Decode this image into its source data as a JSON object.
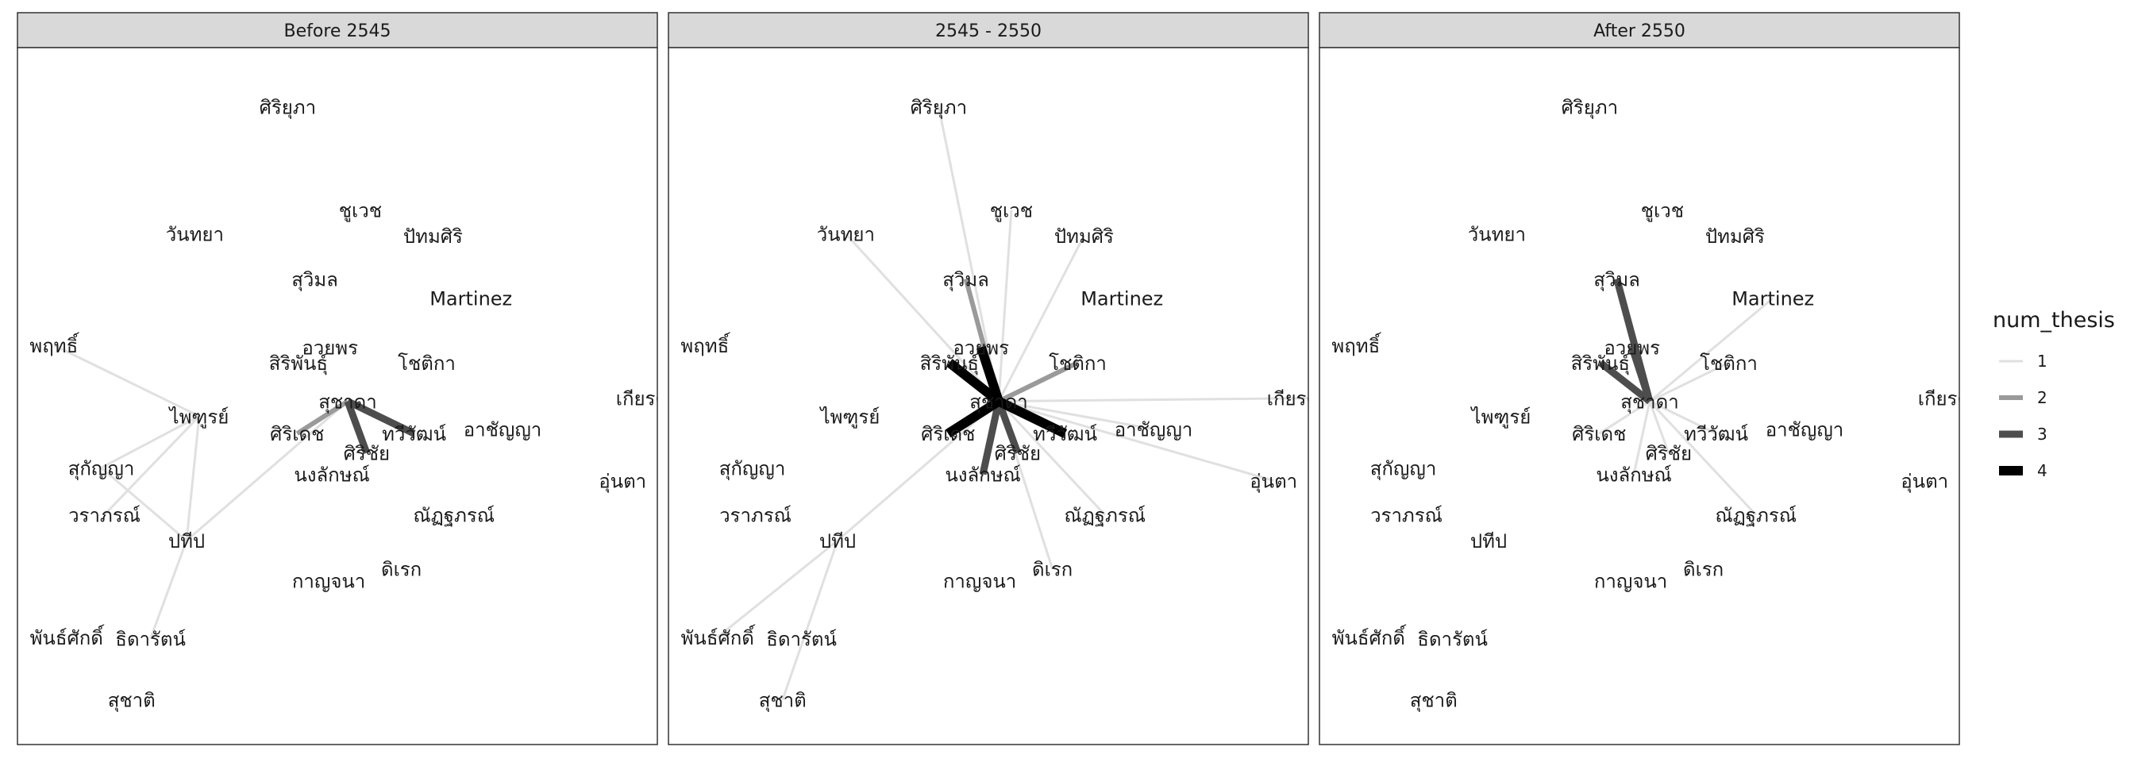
{
  "chart_data": {
    "type": "network",
    "facets": [
      "Before 2545",
      "2545 - 2550",
      "After 2550"
    ],
    "legend": {
      "title": "num_thesis",
      "entries": [
        {
          "value": 1,
          "label": "1",
          "color": "#e0e0e0"
        },
        {
          "value": 2,
          "label": "2",
          "color": "#9a9a9a"
        },
        {
          "value": 3,
          "label": "3",
          "color": "#4d4d4d"
        },
        {
          "value": 4,
          "label": "4",
          "color": "#000000"
        }
      ]
    },
    "nodes": [
      {
        "id": "sriyupa",
        "label": "ศิริยุภา",
        "x": 0.415,
        "y": 0.955
      },
      {
        "id": "chuwet",
        "label": "ชูเวช",
        "x": 0.53,
        "y": 0.795
      },
      {
        "id": "wanthaya",
        "label": "วันทยา",
        "x": 0.268,
        "y": 0.758
      },
      {
        "id": "pathomsiri",
        "label": "ปัทมศิริ",
        "x": 0.645,
        "y": 0.755
      },
      {
        "id": "suwimon",
        "label": "สุวิมล",
        "x": 0.458,
        "y": 0.688
      },
      {
        "id": "martinez",
        "label": "Martinez",
        "x": 0.705,
        "y": 0.658
      },
      {
        "id": "pruetthi",
        "label": "พฤทธิ์",
        "x": 0.045,
        "y": 0.585
      },
      {
        "id": "auayporn",
        "label": "อวยพร",
        "x": 0.482,
        "y": 0.582
      },
      {
        "id": "siriphan",
        "label": "สิริพันธุ์",
        "x": 0.432,
        "y": 0.558
      },
      {
        "id": "chodika",
        "label": "โชติกา",
        "x": 0.635,
        "y": 0.558
      },
      {
        "id": "kiattiwan",
        "label": "เกียรติวรร",
        "x": 1.0,
        "y": 0.503
      },
      {
        "id": "phaiturat",
        "label": "ไพฑูรย์",
        "x": 0.275,
        "y": 0.475
      },
      {
        "id": "suchada",
        "label": "สุชาดา",
        "x": 0.51,
        "y": 0.498
      },
      {
        "id": "siridet",
        "label": "ศิริเดช",
        "x": 0.43,
        "y": 0.448
      },
      {
        "id": "thawiwat",
        "label": "ทวีวัฒน์",
        "x": 0.615,
        "y": 0.448
      },
      {
        "id": "archanya",
        "label": "อาชัญญา",
        "x": 0.755,
        "y": 0.455
      },
      {
        "id": "srichai",
        "label": "ศิริชัย",
        "x": 0.54,
        "y": 0.418
      },
      {
        "id": "sukanya",
        "label": "สุกัญญา",
        "x": 0.12,
        "y": 0.395
      },
      {
        "id": "nonglak",
        "label": "นงลักษณ์",
        "x": 0.485,
        "y": 0.385
      },
      {
        "id": "unta",
        "label": "อุ่นตา",
        "x": 0.945,
        "y": 0.375
      },
      {
        "id": "waraporn",
        "label": "วราภรณ์",
        "x": 0.125,
        "y": 0.322
      },
      {
        "id": "natthaporn",
        "label": "ณัฏฐภรณ์",
        "x": 0.678,
        "y": 0.322
      },
      {
        "id": "pratip",
        "label": "ปทีป",
        "x": 0.255,
        "y": 0.282
      },
      {
        "id": "direk",
        "label": "ดิเรก",
        "x": 0.595,
        "y": 0.238
      },
      {
        "id": "kanchana",
        "label": "กาญจนา",
        "x": 0.48,
        "y": 0.22
      },
      {
        "id": "phansak",
        "label": "พันธ์ศักดิ์",
        "x": 0.065,
        "y": 0.132
      },
      {
        "id": "thidarat",
        "label": "ธิดารัตน์",
        "x": 0.198,
        "y": 0.13
      },
      {
        "id": "suchati",
        "label": "สุชาติ",
        "x": 0.168,
        "y": 0.035
      }
    ],
    "edges": [
      {
        "facet": "Before 2545",
        "from": "suchada",
        "to": "thawiwat",
        "num_thesis": 3
      },
      {
        "facet": "Before 2545",
        "from": "suchada",
        "to": "srichai",
        "num_thesis": 3
      },
      {
        "facet": "Before 2545",
        "from": "suchada",
        "to": "siridet",
        "num_thesis": 2
      },
      {
        "facet": "Before 2545",
        "from": "suchada",
        "to": "pratip",
        "num_thesis": 1
      },
      {
        "facet": "Before 2545",
        "from": "phaiturat",
        "to": "pruetthi",
        "num_thesis": 1
      },
      {
        "facet": "Before 2545",
        "from": "phaiturat",
        "to": "sukanya",
        "num_thesis": 1
      },
      {
        "facet": "Before 2545",
        "from": "phaiturat",
        "to": "waraporn",
        "num_thesis": 1
      },
      {
        "facet": "Before 2545",
        "from": "phaiturat",
        "to": "pratip",
        "num_thesis": 1
      },
      {
        "facet": "Before 2545",
        "from": "sukanya",
        "to": "pratip",
        "num_thesis": 1
      },
      {
        "facet": "Before 2545",
        "from": "pratip",
        "to": "thidarat",
        "num_thesis": 1
      },
      {
        "facet": "2545 - 2550",
        "from": "suchada",
        "to": "siriphan",
        "num_thesis": 4
      },
      {
        "facet": "2545 - 2550",
        "from": "suchada",
        "to": "siridet",
        "num_thesis": 4
      },
      {
        "facet": "2545 - 2550",
        "from": "suchada",
        "to": "thawiwat",
        "num_thesis": 4
      },
      {
        "facet": "2545 - 2550",
        "from": "suchada",
        "to": "auayporn",
        "num_thesis": 4
      },
      {
        "facet": "2545 - 2550",
        "from": "suchada",
        "to": "nonglak",
        "num_thesis": 3
      },
      {
        "facet": "2545 - 2550",
        "from": "suchada",
        "to": "srichai",
        "num_thesis": 3
      },
      {
        "facet": "2545 - 2550",
        "from": "suchada",
        "to": "chodika",
        "num_thesis": 2
      },
      {
        "facet": "2545 - 2550",
        "from": "suchada",
        "to": "suwimon",
        "num_thesis": 2
      },
      {
        "facet": "2545 - 2550",
        "from": "suchada",
        "to": "chuwet",
        "num_thesis": 1
      },
      {
        "facet": "2545 - 2550",
        "from": "suchada",
        "to": "wanthaya",
        "num_thesis": 1
      },
      {
        "facet": "2545 - 2550",
        "from": "suchada",
        "to": "sriyupa",
        "num_thesis": 1
      },
      {
        "facet": "2545 - 2550",
        "from": "suchada",
        "to": "pathomsiri",
        "num_thesis": 1
      },
      {
        "facet": "2545 - 2550",
        "from": "suchada",
        "to": "kiattiwan",
        "num_thesis": 1
      },
      {
        "facet": "2545 - 2550",
        "from": "suchada",
        "to": "unta",
        "num_thesis": 1
      },
      {
        "facet": "2545 - 2550",
        "from": "suchada",
        "to": "natthaporn",
        "num_thesis": 1
      },
      {
        "facet": "2545 - 2550",
        "from": "suchada",
        "to": "direk",
        "num_thesis": 1
      },
      {
        "facet": "2545 - 2550",
        "from": "suchada",
        "to": "pratip",
        "num_thesis": 1
      },
      {
        "facet": "2545 - 2550",
        "from": "suchada",
        "to": "archanya",
        "num_thesis": 1
      },
      {
        "facet": "2545 - 2550",
        "from": "pratip",
        "to": "suchati",
        "num_thesis": 1
      },
      {
        "facet": "2545 - 2550",
        "from": "pratip",
        "to": "phansak",
        "num_thesis": 1
      },
      {
        "facet": "After 2550",
        "from": "suchada",
        "to": "suwimon",
        "num_thesis": 3
      },
      {
        "facet": "After 2550",
        "from": "suchada",
        "to": "siriphan",
        "num_thesis": 3
      },
      {
        "facet": "After 2550",
        "from": "suchada",
        "to": "auayporn",
        "num_thesis": 3
      },
      {
        "facet": "After 2550",
        "from": "suchada",
        "to": "martinez",
        "num_thesis": 1
      },
      {
        "facet": "After 2550",
        "from": "suchada",
        "to": "chodika",
        "num_thesis": 1
      },
      {
        "facet": "After 2550",
        "from": "suchada",
        "to": "siridet",
        "num_thesis": 1
      },
      {
        "facet": "After 2550",
        "from": "suchada",
        "to": "thawiwat",
        "num_thesis": 1
      },
      {
        "facet": "After 2550",
        "from": "suchada",
        "to": "srichai",
        "num_thesis": 1
      },
      {
        "facet": "After 2550",
        "from": "suchada",
        "to": "nonglak",
        "num_thesis": 1
      },
      {
        "facet": "After 2550",
        "from": "suchada",
        "to": "natthaporn",
        "num_thesis": 1
      }
    ]
  }
}
